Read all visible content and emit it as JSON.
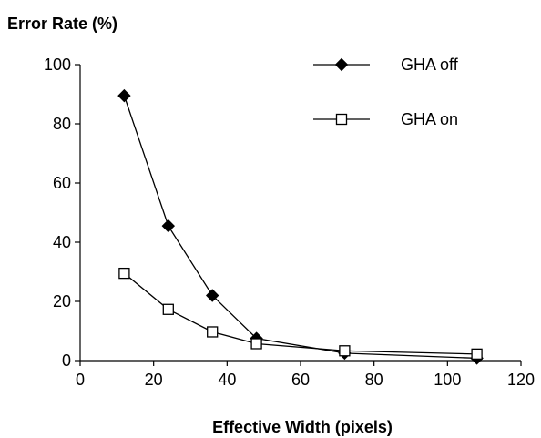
{
  "chart_data": {
    "type": "line",
    "ylabel": "Error Rate (%)",
    "xlabel": "Effective Width (pixels)",
    "xlim": [
      0,
      120
    ],
    "ylim": [
      0,
      100
    ],
    "xticks": [
      0,
      20,
      40,
      60,
      80,
      100,
      120
    ],
    "yticks": [
      0,
      20,
      40,
      60,
      80,
      100
    ],
    "grid": false,
    "legend_position": "top-right",
    "series": [
      {
        "name": "GHA off",
        "marker": "filled-diamond",
        "color": "#000000",
        "x": [
          12,
          24,
          36,
          48,
          72,
          108
        ],
        "y": [
          89.5,
          45.5,
          22,
          7.5,
          2.5,
          0.8
        ]
      },
      {
        "name": "GHA on",
        "marker": "open-square",
        "color": "#000000",
        "x": [
          12,
          24,
          36,
          48,
          72,
          108
        ],
        "y": [
          29.5,
          17.3,
          9.7,
          5.7,
          3.3,
          2.2
        ]
      }
    ]
  }
}
